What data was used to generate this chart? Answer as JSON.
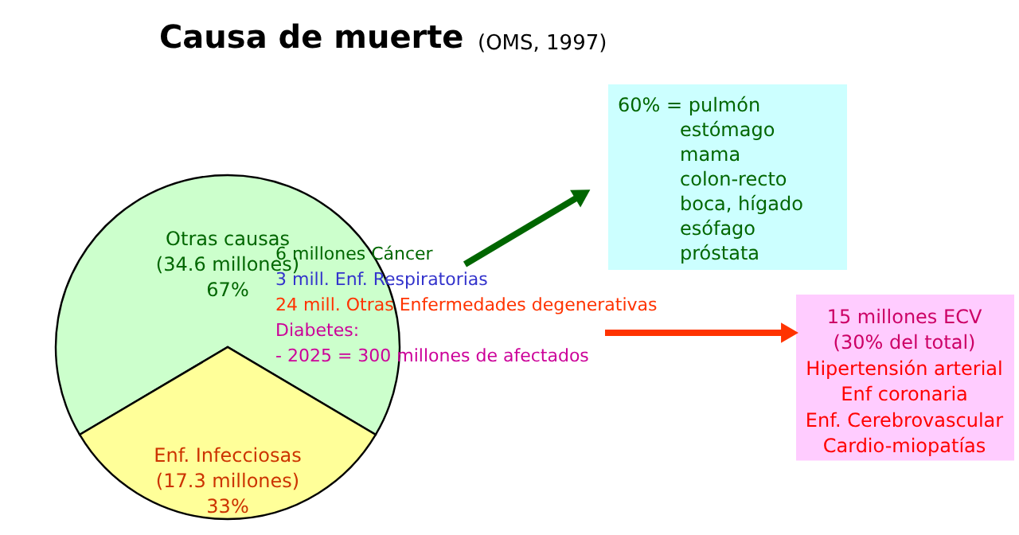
{
  "chart_data": {
    "type": "pie",
    "title": "Causa de muerte",
    "subtitle": "(OMS, 1997)",
    "categories": [
      "Otras causas\n(34.6 millones)",
      "Enf. Infecciosas\n(17.3 millones)"
    ],
    "values": [
      67,
      33
    ],
    "colors": [
      "#ccffcc",
      "#ffff99"
    ],
    "value_labels": [
      "67%",
      "33%"
    ],
    "annotations": [
      "6 millones Cáncer",
      "3 mill. Enf. Respiratorias",
      "24 mill. Otras Enfermedades degenerativas",
      "Diabetes:",
      "- 2025 = 300  millones de afectados",
      "60% = pulmón\nestómago\nmama\ncolon-recto\nboca, hígado\nesófago\npróstata",
      "15 millones ECV\n(30% del total)\nHipertensión arterial\nEnf coronaria\nEnf. Cerebrovascular\nCardio-miopatías"
    ]
  }
}
